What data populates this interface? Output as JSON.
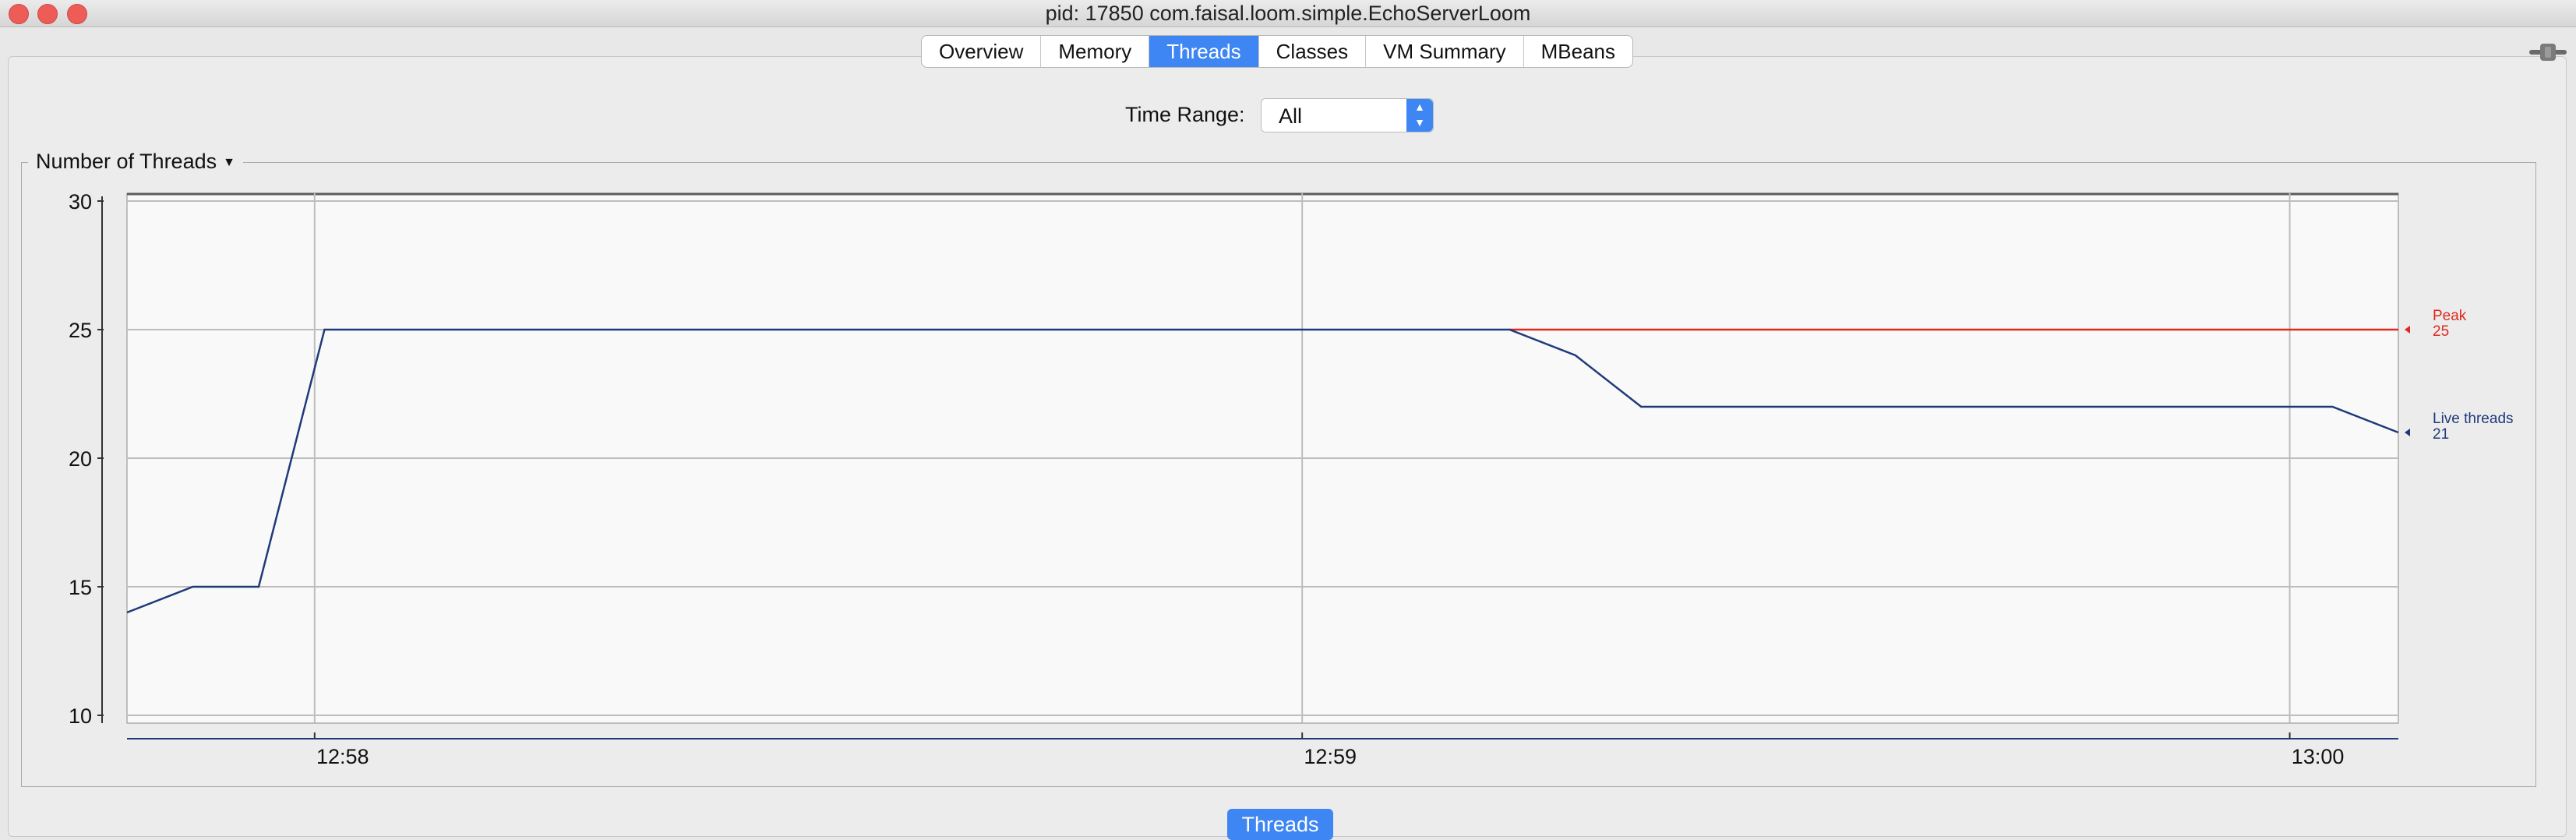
{
  "window": {
    "title": "pid: 17850 com.faisal.loom.simple.EchoServerLoom"
  },
  "tabs": [
    {
      "label": "Overview"
    },
    {
      "label": "Memory"
    },
    {
      "label": "Threads",
      "active": true
    },
    {
      "label": "Classes"
    },
    {
      "label": "VM Summary"
    },
    {
      "label": "MBeans"
    }
  ],
  "controls": {
    "time_range_label": "Time Range:",
    "time_range_value": "All"
  },
  "chart_group": {
    "title": "Number of Threads"
  },
  "bottom_tab": {
    "label": "Threads"
  },
  "colors": {
    "accent": "#3d86f3",
    "live": "#1f3a7a",
    "peak": "#e0281e"
  },
  "chart_data": {
    "type": "line",
    "ylim": [
      10,
      30
    ],
    "yticks": [
      10,
      15,
      20,
      25,
      30
    ],
    "xlim": [
      0,
      138
    ],
    "xticks": [
      {
        "x": 11.4,
        "label": "12:58"
      },
      {
        "x": 71.4,
        "label": "12:59"
      },
      {
        "x": 131.4,
        "label": "13:00"
      }
    ],
    "series": [
      {
        "name": "Peak",
        "color": "#e0281e",
        "last_label": "25",
        "x": [
          84,
          138
        ],
        "y": [
          25,
          25
        ]
      },
      {
        "name": "Live threads",
        "color": "#1f3a7a",
        "last_label": "21",
        "x": [
          0,
          4,
          8,
          12,
          84,
          88,
          92,
          134,
          138
        ],
        "y": [
          14,
          15,
          15,
          25,
          25,
          24,
          22,
          22,
          21
        ]
      }
    ]
  }
}
